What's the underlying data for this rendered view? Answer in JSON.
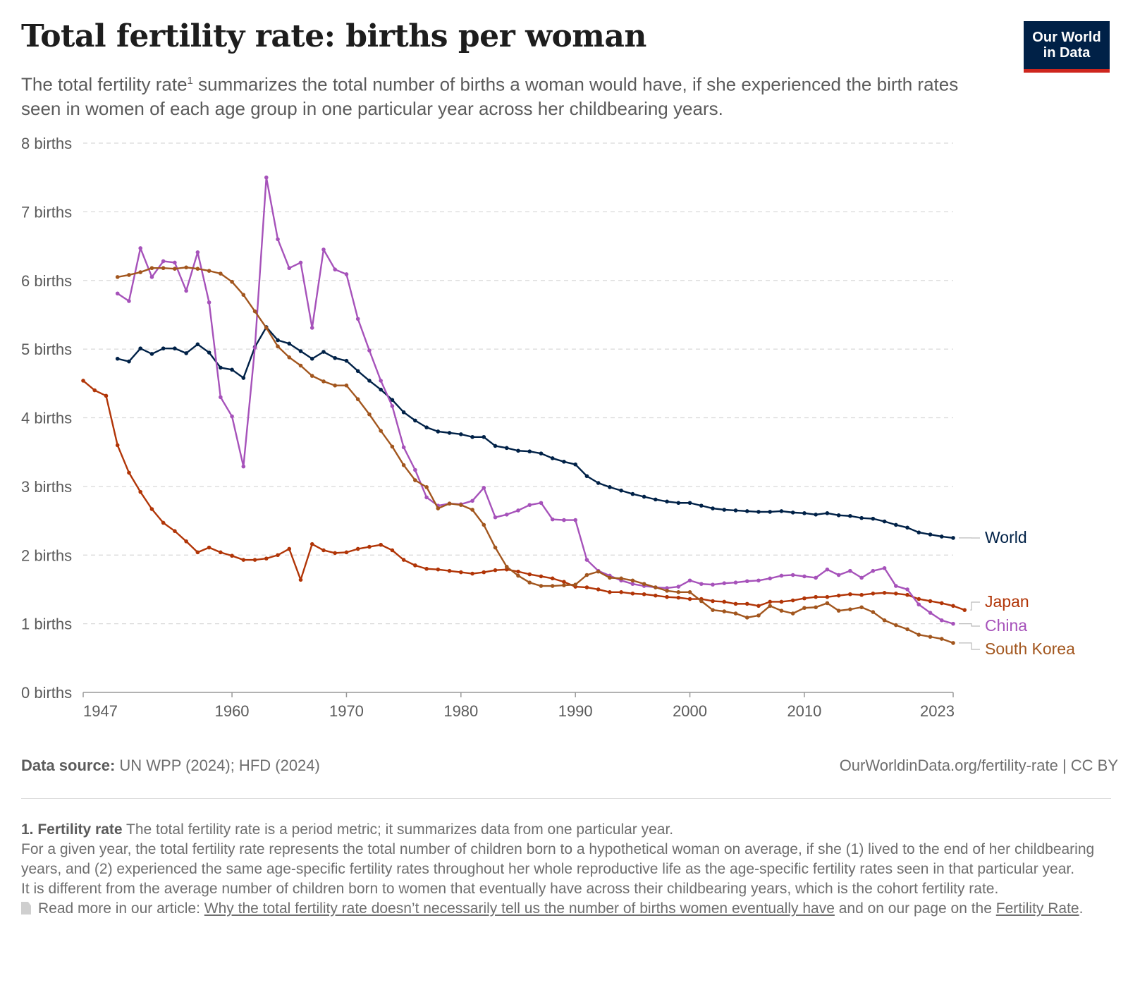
{
  "header": {
    "title": "Total fertility rate: births per woman",
    "subtitle_a": "The total fertility rate",
    "subtitle_sup": "1",
    "subtitle_b": " summarizes the total number of births a woman would have, if she experienced the birth rates seen in women of each age group in one particular year across her childbearing years.",
    "logo_line1": "Our World",
    "logo_line2": "in Data"
  },
  "colors": {
    "World": "#002147",
    "Japan": "#b13507",
    "China": "#a652ba",
    "South Korea": "#a2561e",
    "grid": "#d9d9d9",
    "axis_text": "#5b5b5b",
    "logo_background": "#002147",
    "logo_accent": "#ce261e"
  },
  "chart_data": {
    "type": "line",
    "y_unit_suffix": " births",
    "ylim": [
      0,
      8
    ],
    "y_ticks": [
      0,
      1,
      2,
      3,
      4,
      5,
      6,
      7,
      8
    ],
    "xlim": [
      1947,
      2023
    ],
    "x_ticks": [
      1947,
      1960,
      1970,
      1980,
      1990,
      2000,
      2010,
      2023
    ],
    "grid": "horizontal dashed",
    "legend": "right, labels at line ends",
    "series": [
      {
        "name": "World",
        "start_year": 1950,
        "values": [
          4.86,
          4.82,
          5.01,
          4.93,
          5.01,
          5.01,
          4.94,
          5.07,
          4.95,
          4.73,
          4.7,
          4.58,
          5.03,
          5.32,
          5.13,
          5.08,
          4.97,
          4.86,
          4.96,
          4.87,
          4.83,
          4.68,
          4.54,
          4.41,
          4.26,
          4.08,
          3.96,
          3.86,
          3.8,
          3.78,
          3.76,
          3.72,
          3.72,
          3.59,
          3.56,
          3.52,
          3.51,
          3.48,
          3.41,
          3.36,
          3.32,
          3.15,
          3.05,
          2.99,
          2.94,
          2.89,
          2.85,
          2.81,
          2.78,
          2.76,
          2.76,
          2.72,
          2.68,
          2.66,
          2.65,
          2.64,
          2.63,
          2.63,
          2.64,
          2.62,
          2.61,
          2.59,
          2.61,
          2.58,
          2.57,
          2.54,
          2.53,
          2.49,
          2.44,
          2.4,
          2.33,
          2.3,
          2.27,
          2.25
        ]
      },
      {
        "name": "Japan",
        "start_year": 1947,
        "values": [
          4.54,
          4.4,
          4.32,
          3.6,
          3.2,
          2.92,
          2.67,
          2.47,
          2.35,
          2.2,
          2.04,
          2.11,
          2.04,
          1.99,
          1.93,
          1.93,
          1.95,
          2.0,
          2.09,
          1.64,
          2.16,
          2.07,
          2.03,
          2.04,
          2.09,
          2.12,
          2.15,
          2.07,
          1.93,
          1.85,
          1.8,
          1.79,
          1.77,
          1.75,
          1.73,
          1.75,
          1.78,
          1.79,
          1.76,
          1.72,
          1.69,
          1.66,
          1.61,
          1.54,
          1.53,
          1.5,
          1.46,
          1.46,
          1.44,
          1.43,
          1.41,
          1.39,
          1.38,
          1.36,
          1.36,
          1.33,
          1.32,
          1.29,
          1.29,
          1.26,
          1.32,
          1.32,
          1.34,
          1.37,
          1.39,
          1.39,
          1.41,
          1.43,
          1.42,
          1.44,
          1.45,
          1.44,
          1.42,
          1.36,
          1.33,
          1.3,
          1.26,
          1.2
        ]
      },
      {
        "name": "China",
        "start_year": 1950,
        "values": [
          5.81,
          5.7,
          6.47,
          6.05,
          6.28,
          6.26,
          5.85,
          6.41,
          5.68,
          4.3,
          4.02,
          3.29,
          5.02,
          7.5,
          6.6,
          6.18,
          6.26,
          5.31,
          6.45,
          6.16,
          6.09,
          5.44,
          4.98,
          4.54,
          4.17,
          3.57,
          3.24,
          2.84,
          2.72,
          2.75,
          2.74,
          2.79,
          2.98,
          2.55,
          2.59,
          2.65,
          2.73,
          2.76,
          2.52,
          2.51,
          2.51,
          1.93,
          1.77,
          1.7,
          1.63,
          1.58,
          1.55,
          1.53,
          1.52,
          1.54,
          1.63,
          1.58,
          1.57,
          1.59,
          1.6,
          1.62,
          1.63,
          1.66,
          1.7,
          1.71,
          1.69,
          1.67,
          1.79,
          1.71,
          1.77,
          1.67,
          1.77,
          1.81,
          1.55,
          1.5,
          1.28,
          1.16,
          1.05,
          1.0
        ]
      },
      {
        "name": "South Korea",
        "start_year": 1950,
        "values": [
          6.05,
          6.08,
          6.12,
          6.18,
          6.18,
          6.17,
          6.19,
          6.17,
          6.14,
          6.1,
          5.98,
          5.79,
          5.55,
          5.31,
          5.04,
          4.88,
          4.76,
          4.61,
          4.53,
          4.47,
          4.47,
          4.27,
          4.05,
          3.81,
          3.58,
          3.31,
          3.09,
          2.99,
          2.68,
          2.75,
          2.73,
          2.66,
          2.44,
          2.11,
          1.83,
          1.7,
          1.6,
          1.55,
          1.55,
          1.56,
          1.57,
          1.71,
          1.76,
          1.67,
          1.66,
          1.63,
          1.58,
          1.53,
          1.48,
          1.46,
          1.46,
          1.33,
          1.2,
          1.18,
          1.15,
          1.09,
          1.12,
          1.26,
          1.19,
          1.15,
          1.23,
          1.24,
          1.3,
          1.19,
          1.21,
          1.24,
          1.17,
          1.05,
          0.98,
          0.92,
          0.84,
          0.81,
          0.78,
          0.72
        ]
      }
    ]
  },
  "footer": {
    "source_label": "Data source:",
    "source_text": " UN WPP (2024); HFD (2024)",
    "license": "OurWorldinData.org/fertility-rate | CC BY",
    "note_label": "1. Fertility rate",
    "note_a": " The total fertility rate is a period metric; it summarizes data from one particular year.",
    "note_b": "For a given year, the total fertility rate represents the total number of children born to a hypothetical woman on average, if she (1) lived to the end of her childbearing years, and (2) experienced the same age-specific fertility rates throughout her whole reproductive life as the age-specific fertility rates seen in that particular year.",
    "note_c": "It is different from the average number of children born to women that eventually have across their childbearing years, which is the cohort fertility rate.",
    "read_more_prefix": "Read more in our article: ",
    "read_more_link": "Why the total fertility rate doesn’t necessarily tell us the number of births women eventually have",
    "read_more_mid": " and on our page on the ",
    "read_more_link2": "Fertility Rate",
    "read_more_end": "."
  }
}
